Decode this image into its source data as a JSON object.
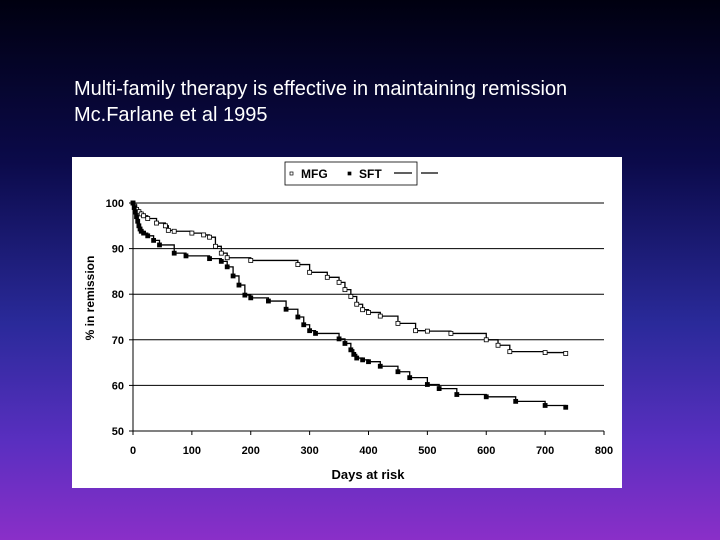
{
  "slide": {
    "title_line1": "Multi-family therapy is effective in maintaining remission",
    "title_line2": "Mc.Farlane et al 1995",
    "background_top": "#000010",
    "background_bottom": "#8a2fc8"
  },
  "chart_data": {
    "type": "line",
    "title": "",
    "xlabel": "Days at risk",
    "ylabel": "% in remission",
    "xlim": [
      0,
      800
    ],
    "ylim": [
      50,
      100
    ],
    "xticks": [
      0,
      100,
      200,
      300,
      400,
      500,
      600,
      700,
      800
    ],
    "yticks": [
      50,
      60,
      70,
      80,
      90,
      100
    ],
    "grid": "horizontal",
    "legend_position": "top-center",
    "legend": [
      "MFG",
      "SFT"
    ],
    "series": [
      {
        "name": "MFG",
        "marker": "open-square",
        "color": "#000000",
        "x": [
          0,
          3,
          6,
          10,
          14,
          18,
          25,
          40,
          55,
          60,
          70,
          100,
          120,
          130,
          140,
          150,
          160,
          200,
          280,
          300,
          330,
          350,
          360,
          370,
          380,
          390,
          400,
          420,
          450,
          480,
          500,
          540,
          600,
          620,
          640,
          700,
          735
        ],
        "y": [
          100,
          99.3,
          98.6,
          98.1,
          97.6,
          97.2,
          96.6,
          95.6,
          95.0,
          94.0,
          93.8,
          93.4,
          93.0,
          92.5,
          90.5,
          89.0,
          88.0,
          87.4,
          86.5,
          84.8,
          83.7,
          82.6,
          81.0,
          79.5,
          77.8,
          76.6,
          76.0,
          75.2,
          73.6,
          72.0,
          71.9,
          71.4,
          70.0,
          68.8,
          67.4,
          67.2,
          67.0
        ]
      },
      {
        "name": "SFT",
        "marker": "filled-square",
        "color": "#000000",
        "x": [
          0,
          2,
          4,
          6,
          8,
          10,
          12,
          14,
          18,
          25,
          35,
          45,
          70,
          90,
          130,
          150,
          160,
          170,
          180,
          190,
          200,
          230,
          260,
          280,
          290,
          300,
          310,
          350,
          360,
          370,
          375,
          380,
          390,
          400,
          420,
          450,
          470,
          500,
          520,
          550,
          600,
          650,
          700,
          735
        ],
        "y": [
          100,
          99.0,
          98.0,
          97.0,
          96.0,
          95.0,
          94.3,
          93.8,
          93.4,
          92.8,
          91.8,
          90.8,
          89.0,
          88.4,
          87.8,
          87.2,
          86.0,
          84.0,
          82.0,
          79.8,
          79.2,
          78.5,
          76.7,
          75.0,
          73.3,
          72.0,
          71.4,
          70.2,
          69.2,
          67.8,
          66.8,
          66.0,
          65.6,
          65.2,
          64.2,
          63.0,
          61.7,
          60.2,
          59.3,
          58.0,
          57.5,
          56.5,
          55.6,
          55.2
        ]
      }
    ]
  }
}
